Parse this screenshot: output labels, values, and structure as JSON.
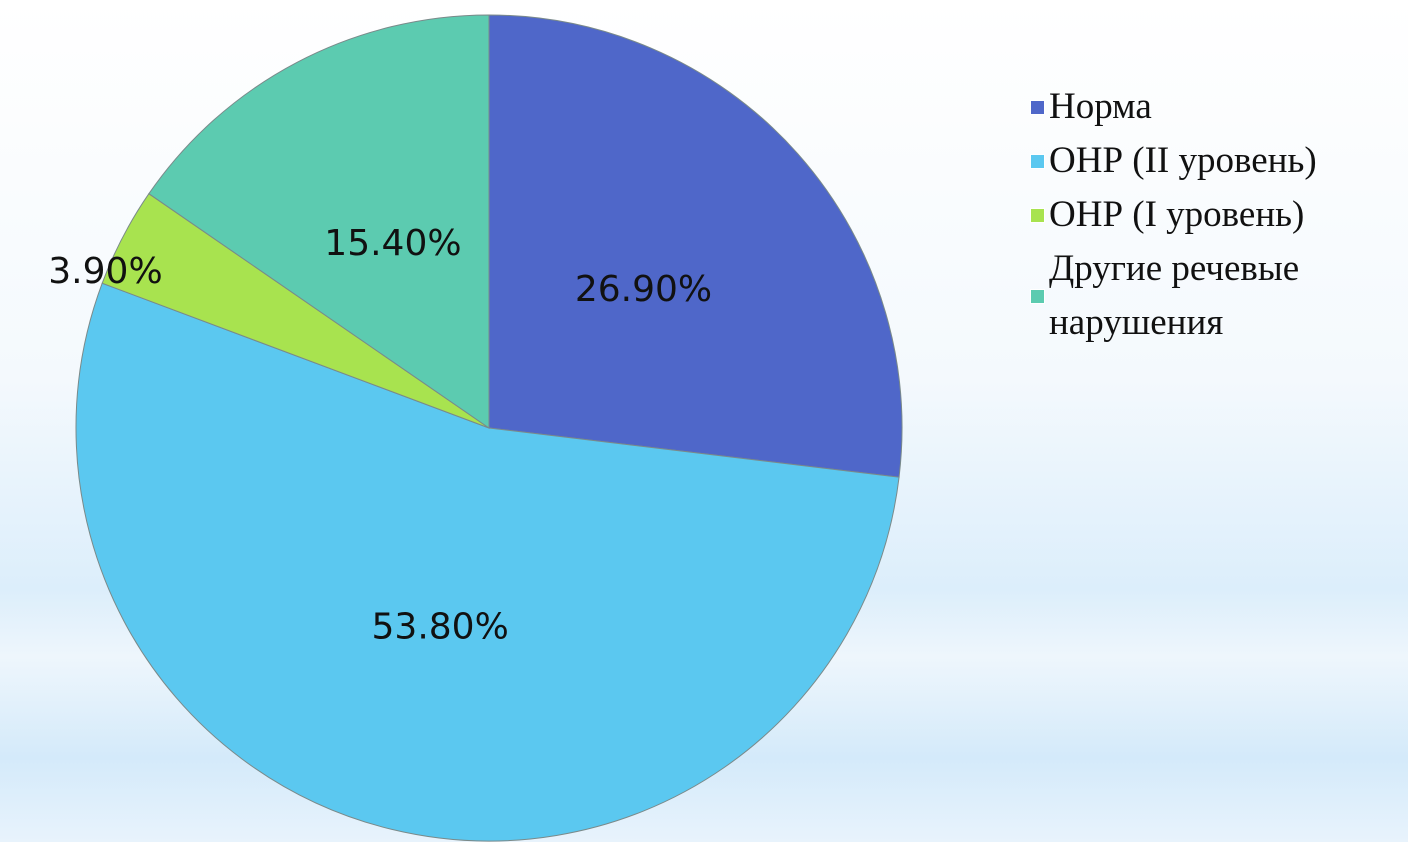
{
  "chart_data": {
    "type": "pie",
    "categories": [
      "Норма",
      "ОНР (II уровень)",
      "ОНР (I уровень)",
      "Другие речевые нарушения"
    ],
    "values": [
      26.9,
      53.8,
      3.9,
      15.4
    ],
    "value_labels": [
      "26.90%",
      "53.80%",
      "3.90%",
      "15.40%"
    ],
    "colors": [
      "#4f67c9",
      "#5bc8f0",
      "#a8e34f",
      "#5ccbb0"
    ],
    "legend": "right"
  }
}
